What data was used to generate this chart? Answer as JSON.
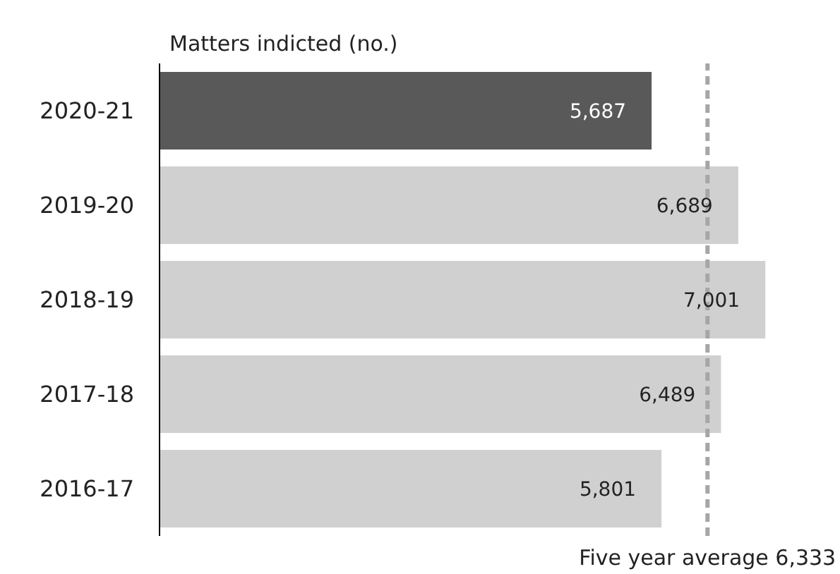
{
  "chart_data": {
    "type": "bar",
    "orientation": "horizontal",
    "ylabel": "Matters indicted (no.)",
    "categories": [
      "2020-21",
      "2019-20",
      "2018-19",
      "2017-18",
      "2016-17"
    ],
    "values": [
      5687,
      6689,
      7001,
      6489,
      5801
    ],
    "colors": [
      "#595959",
      "#d0d0d0",
      "#d0d0d0",
      "#d0d0d0",
      "#d0d0d0"
    ],
    "value_labels": [
      "5,687",
      "6,689",
      "7,001",
      "6,489",
      "5,801"
    ],
    "ref_lines": [
      {
        "axis": "x",
        "value": 6333,
        "label": "Five year average 6,333",
        "color": "#a6a6a6",
        "line_style": "dashed"
      }
    ]
  }
}
